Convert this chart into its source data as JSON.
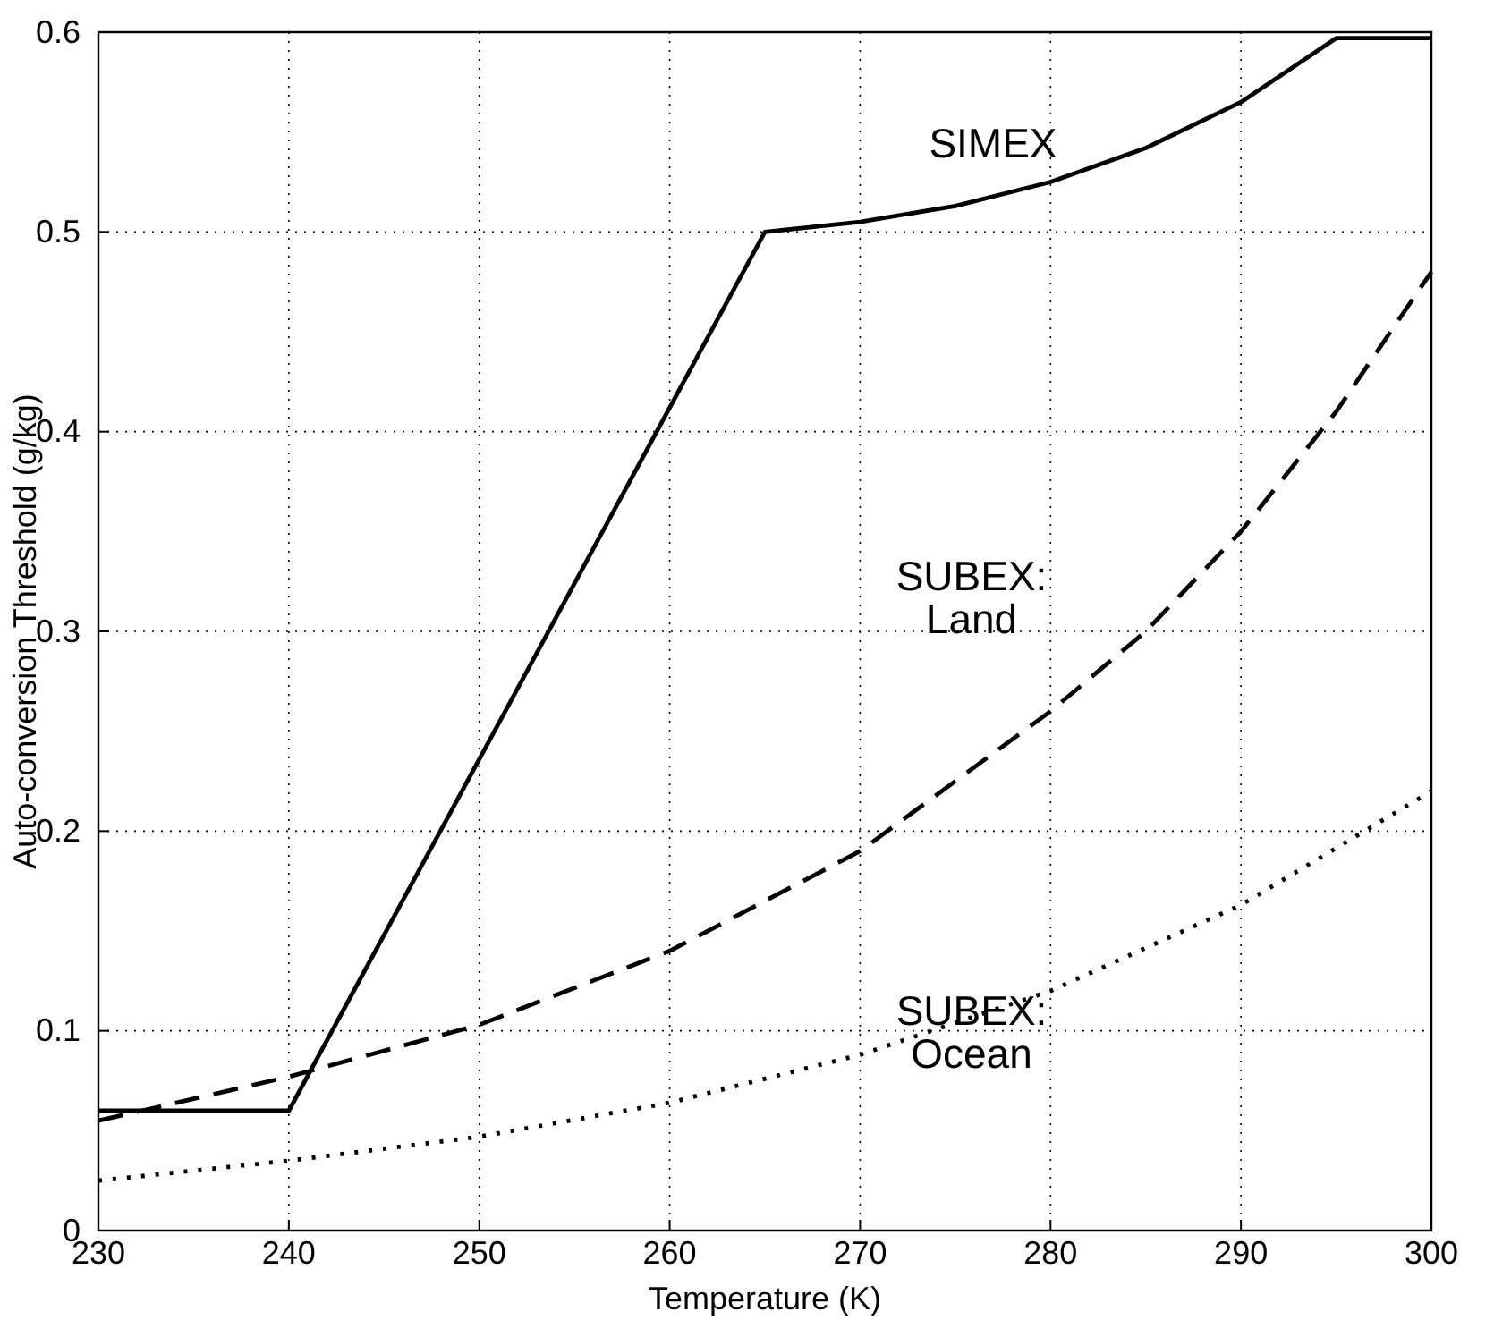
{
  "chart_data": {
    "type": "line",
    "xlabel": "Temperature (K)",
    "ylabel": "Auto-conversion Threshold (g/kg)",
    "xlim": [
      230,
      300
    ],
    "xticks": [
      230,
      240,
      250,
      260,
      270,
      280,
      290,
      300
    ],
    "ylim": [
      0,
      0.6
    ],
    "yticks": [
      0,
      0.1,
      0.2,
      0.3,
      0.4,
      0.5,
      0.6
    ],
    "grid": true,
    "series": [
      {
        "color": "#000000",
        "line_style": "solid",
        "x": [
          230,
          240,
          265,
          270,
          275,
          280,
          285,
          290,
          295,
          300
        ],
        "values": [
          0.06,
          0.06,
          0.5,
          0.505,
          0.513,
          0.525,
          0.542,
          0.565,
          0.597,
          0.597
        ]
      },
      {
        "color": "#000000",
        "line_style": "dashed",
        "x": [
          230,
          240,
          250,
          260,
          270,
          280,
          285,
          290,
          295,
          300
        ],
        "values": [
          0.055,
          0.077,
          0.103,
          0.14,
          0.19,
          0.26,
          0.3,
          0.35,
          0.41,
          0.48
        ]
      },
      {
        "color": "#000000",
        "line_style": "dotted",
        "x": [
          230,
          240,
          250,
          260,
          270,
          280,
          290,
          300
        ],
        "values": [
          0.025,
          0.035,
          0.047,
          0.064,
          0.088,
          0.12,
          0.163,
          0.22
        ]
      }
    ],
    "annotations": [
      "SIMEX",
      "SUBEX:\nLand",
      "SUBEX:\nOcean"
    ]
  }
}
